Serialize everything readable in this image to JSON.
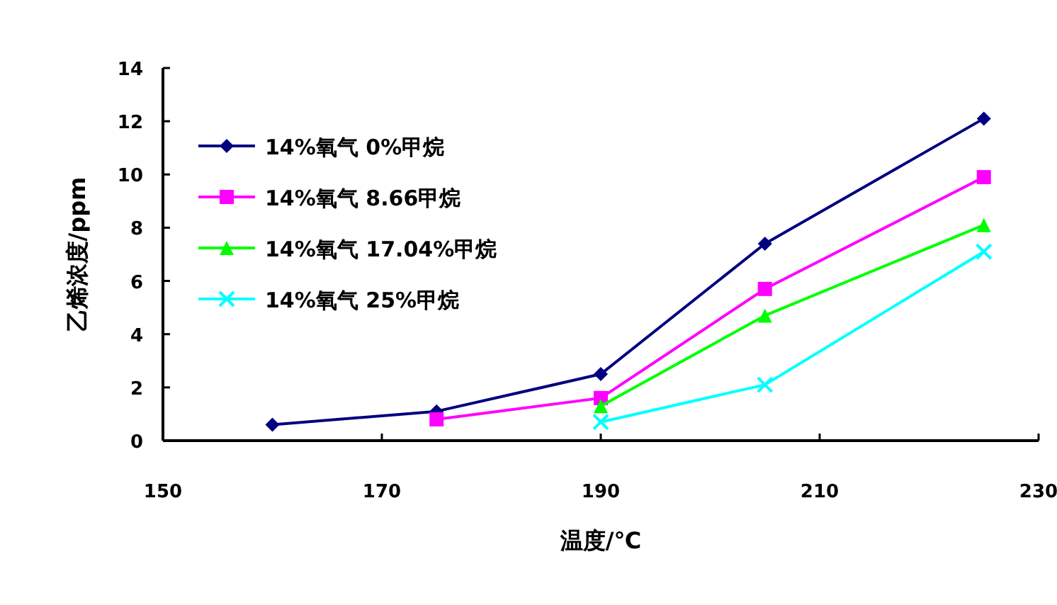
{
  "chart_data": {
    "type": "line",
    "xlabel": "温度/℃",
    "ylabel": "乙烯浓度/ppm",
    "xlim": [
      150,
      230
    ],
    "xticks": [
      150,
      170,
      190,
      210,
      230
    ],
    "ylim": [
      0,
      14
    ],
    "yticks": [
      0,
      2,
      4,
      6,
      8,
      10,
      12,
      14
    ],
    "grid": false,
    "legend": "top left",
    "series": [
      {
        "name": "14%氧气 0%甲烷",
        "color": "#000080",
        "marker": "diamond",
        "x": [
          160,
          175,
          190,
          205,
          225
        ],
        "values": [
          0.6,
          1.1,
          2.5,
          7.4,
          12.1
        ]
      },
      {
        "name": "14%氧气 8.66甲烷",
        "color": "#ff00ff",
        "marker": "square",
        "x": [
          175,
          190,
          205,
          225
        ],
        "values": [
          0.8,
          1.6,
          5.7,
          9.9
        ]
      },
      {
        "name": "14%氧气 17.04%甲烷",
        "color": "#00ff00",
        "marker": "triangle",
        "x": [
          190,
          205,
          225
        ],
        "values": [
          1.3,
          4.7,
          8.1
        ]
      },
      {
        "name": "14%氧气 25%甲烷",
        "color": "#00ffff",
        "marker": "cross",
        "x": [
          190,
          205,
          225
        ],
        "values": [
          0.7,
          2.1,
          7.1
        ]
      }
    ]
  }
}
